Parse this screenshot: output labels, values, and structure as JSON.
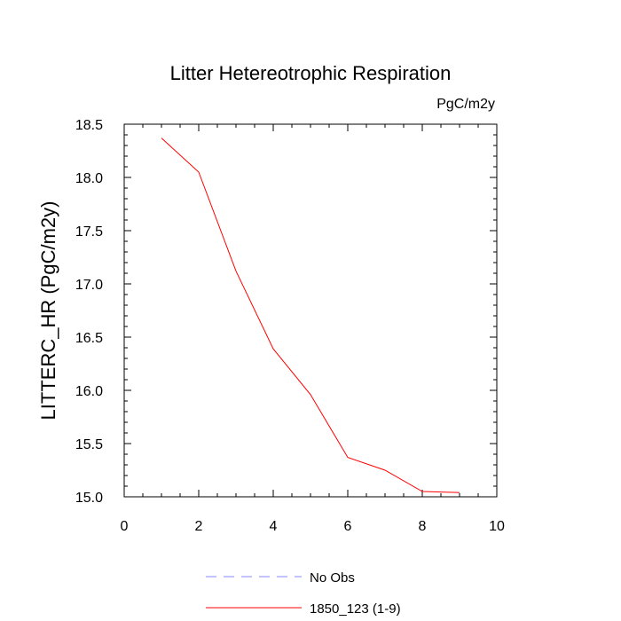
{
  "chart_data": {
    "type": "line",
    "title": "Litter Hetereotrophic Respiration",
    "units_label": "PgC/m2y",
    "xlabel": "",
    "ylabel": "LITTERC_HR  (PgC/m2y)",
    "xlim": [
      0,
      10
    ],
    "ylim": [
      15.0,
      18.5
    ],
    "x_ticks": [
      "0",
      "2",
      "4",
      "6",
      "8",
      "10"
    ],
    "y_ticks": [
      "15.0",
      "15.5",
      "16.0",
      "16.5",
      "17.0",
      "17.5",
      "18.0",
      "18.5"
    ],
    "grid": false,
    "legend_position": "bottom",
    "series": [
      {
        "name": "No Obs",
        "color": "#8888ff",
        "dash": "dashed",
        "x": [],
        "y": []
      },
      {
        "name": "1850_123 (1-9)",
        "color": "#ff0000",
        "dash": "solid",
        "x": [
          1,
          2,
          3,
          4,
          5,
          6,
          7,
          8,
          9
        ],
        "y": [
          18.37,
          18.05,
          17.12,
          16.39,
          15.96,
          15.37,
          15.25,
          15.05,
          15.04
        ]
      }
    ]
  }
}
